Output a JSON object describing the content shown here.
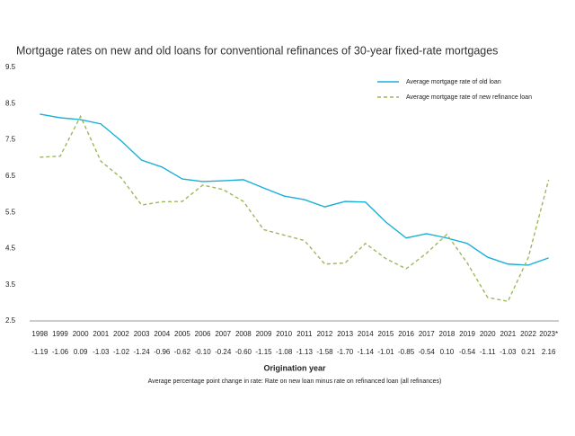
{
  "chart_data": {
    "type": "line",
    "title": "Mortgage rates on new and old loans for conventional refinances of 30-year fixed-rate mortgages",
    "x_label": "Origination year",
    "note": "Average percentage point change in rate: Rate on new loan minus rate on refinanced loan (all refinances)",
    "categories": [
      "1998",
      "1999",
      "2000",
      "2001",
      "2002",
      "2003",
      "2004",
      "2005",
      "2006",
      "2007",
      "2008",
      "2009",
      "2010",
      "2011",
      "2012",
      "2013",
      "2014",
      "2015",
      "2016",
      "2017",
      "2018",
      "2019",
      "2020",
      "2021",
      "2022",
      "2023*"
    ],
    "change_labels": [
      "-1.19",
      "-1.06",
      "0.09",
      "-1.03",
      "-1.02",
      "-1.24",
      "-0.96",
      "-0.62",
      "-0.10",
      "-0.24",
      "-0.60",
      "-1.15",
      "-1.08",
      "-1.13",
      "-1.58",
      "-1.70",
      "-1.14",
      "-1.01",
      "-0.85",
      "-0.54",
      "0.10",
      "-0.54",
      "-1.11",
      "-1.03",
      "0.21",
      "2.16"
    ],
    "series": [
      {
        "name": "Average mortgage rate of old loan",
        "color": "#1ab0d8",
        "style": "solid",
        "values": [
          8.21,
          8.11,
          8.06,
          7.94,
          7.47,
          6.94,
          6.75,
          6.42,
          6.35,
          6.37,
          6.4,
          6.17,
          5.95,
          5.85,
          5.65,
          5.8,
          5.78,
          5.23,
          4.79,
          4.91,
          4.79,
          4.64,
          4.26,
          4.07,
          4.04,
          4.24
        ]
      },
      {
        "name": "Average mortgage rate of new refinance loan",
        "color": "#9cb85c",
        "style": "dashed",
        "values": [
          7.02,
          7.05,
          8.15,
          6.91,
          6.45,
          5.7,
          5.79,
          5.8,
          6.25,
          6.13,
          5.8,
          5.02,
          4.87,
          4.72,
          4.07,
          4.1,
          4.64,
          4.22,
          3.94,
          4.37,
          4.89,
          4.1,
          3.15,
          3.04,
          4.25,
          6.4
        ]
      }
    ],
    "ylim": [
      2.5,
      9.5
    ],
    "yticks": [
      2.5,
      3.5,
      4.5,
      5.5,
      6.5,
      7.5,
      8.5,
      9.5
    ],
    "grid": false,
    "legend": "top-right"
  }
}
